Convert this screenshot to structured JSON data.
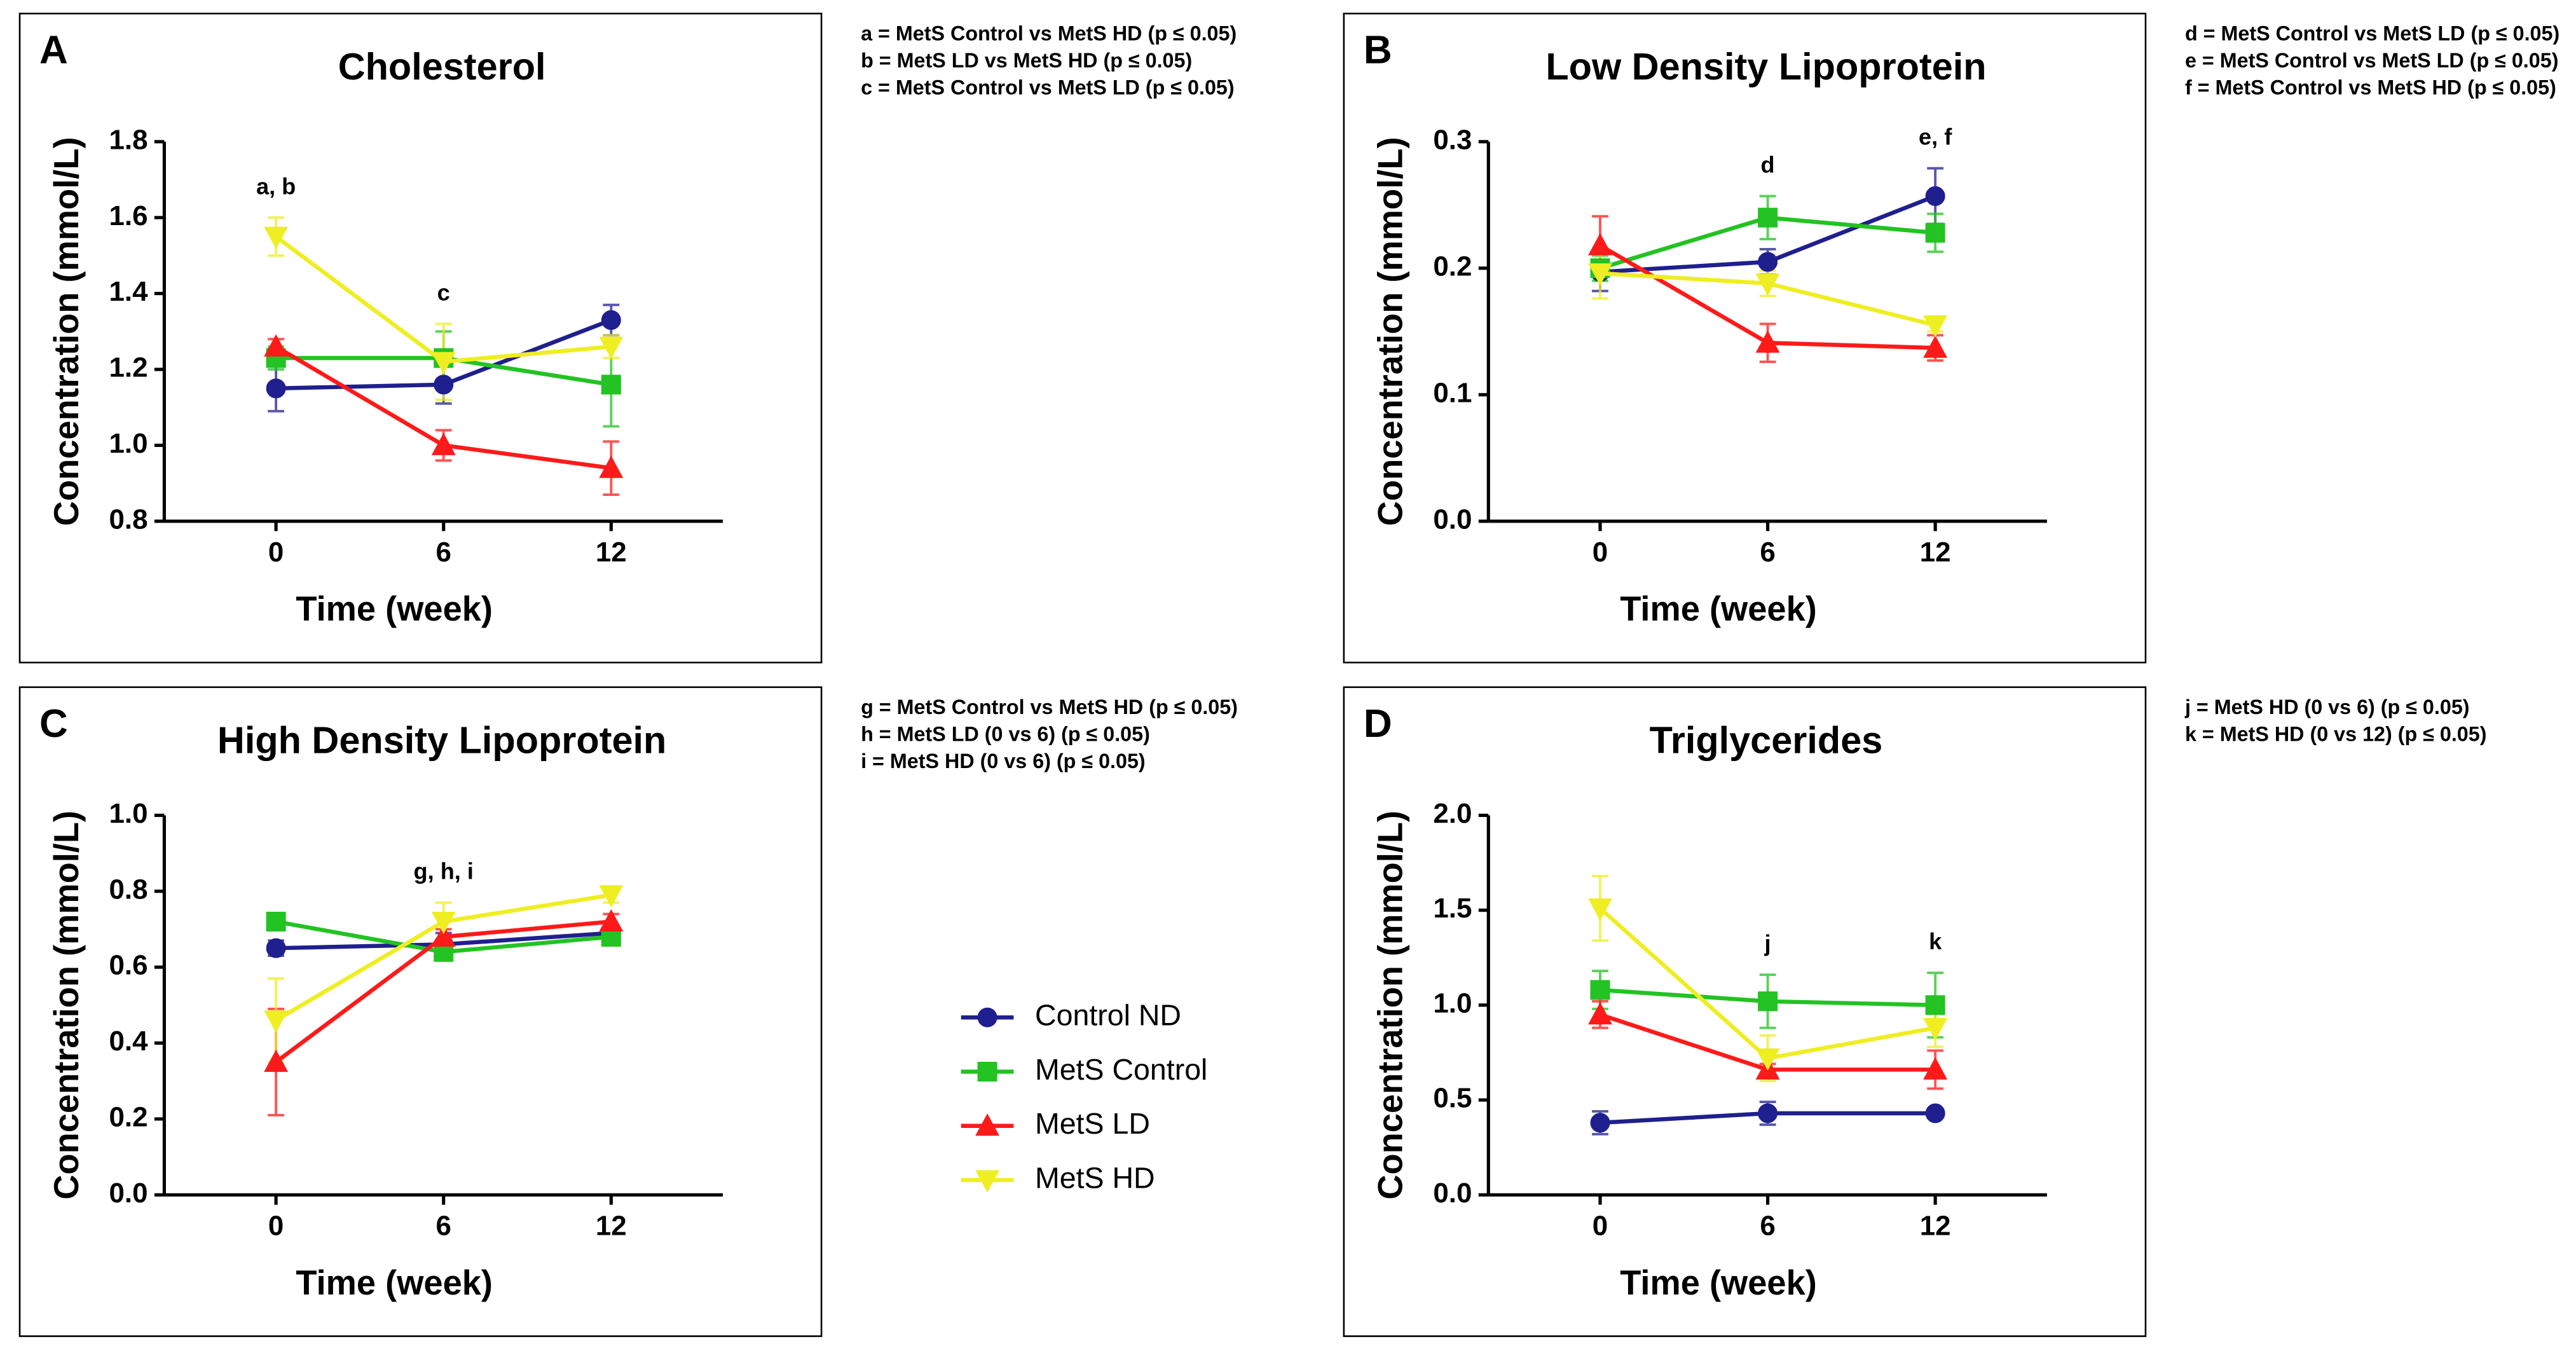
{
  "chart_data": [
    {
      "type": "line",
      "panel": "A",
      "title": "Cholesterol",
      "xlabel": "Time (week)",
      "ylabel": "Concentration (mmol/L)",
      "x": [
        0,
        6,
        12
      ],
      "xlim": [
        -4,
        16
      ],
      "xticks": [
        0,
        6,
        12
      ],
      "ylim": [
        0.8,
        1.8
      ],
      "yticks": [
        0.8,
        {
          "value": 1,
          "label": "1.0"
        },
        1.2,
        1.4,
        1.6,
        1.8
      ],
      "series": [
        {
          "name": "Control ND",
          "color": "#1f1f8f",
          "marker": "circle",
          "values": [
            1.15,
            1.16,
            1.33
          ],
          "errors": [
            0.06,
            0.05,
            0.04
          ]
        },
        {
          "name": "MetS Control",
          "color": "#22c322",
          "marker": "square",
          "values": [
            1.23,
            1.23,
            1.16
          ],
          "errors": [
            0.03,
            0.07,
            0.11
          ]
        },
        {
          "name": "MetS LD",
          "color": "#ff1a1a",
          "marker": "triangle",
          "values": [
            1.26,
            1.0,
            0.94
          ],
          "errors": [
            0.02,
            0.04,
            0.07
          ]
        },
        {
          "name": "MetS HD",
          "color": "#eeee22",
          "marker": "triangle-down",
          "values": [
            1.55,
            1.22,
            1.26
          ],
          "errors": [
            0.05,
            0.1,
            0.03
          ]
        }
      ],
      "annotations": [
        {
          "text": "a, b",
          "x": 0
        },
        {
          "text": "c",
          "x": 6
        }
      ],
      "notes": [
        "a = MetS Control vs MetS HD (p ≤ 0.05)",
        "b = MetS LD vs MetS HD  (p ≤ 0.05)",
        "c = MetS Control vs MetS LD (p ≤ 0.05)"
      ]
    },
    {
      "type": "line",
      "panel": "B",
      "title": "Low Density Lipoprotein",
      "xlabel": "Time (week)",
      "ylabel": "Concentration (mmol/L)",
      "x": [
        0,
        6,
        12
      ],
      "xlim": [
        -4,
        16
      ],
      "xticks": [
        0,
        6,
        12
      ],
      "ylim": [
        0,
        0.3
      ],
      "yticks": [
        {
          "value": 0,
          "label": "0.0"
        },
        0.1,
        0.2,
        0.3
      ],
      "series": [
        {
          "name": "Control ND",
          "color": "#1f1f8f",
          "marker": "circle",
          "values": [
            0.197,
            0.205,
            0.257
          ],
          "errors": [
            0.015,
            0.01,
            0.022
          ]
        },
        {
          "name": "MetS Control",
          "color": "#22c322",
          "marker": "square",
          "values": [
            0.2,
            0.24,
            0.228
          ],
          "errors": [
            0.01,
            0.017,
            0.015
          ]
        },
        {
          "name": "MetS LD",
          "color": "#ff1a1a",
          "marker": "triangle",
          "values": [
            0.218,
            0.141,
            0.137
          ],
          "errors": [
            0.023,
            0.015,
            0.01
          ]
        },
        {
          "name": "MetS HD",
          "color": "#eeee22",
          "marker": "triangle-down",
          "values": [
            0.196,
            0.188,
            0.155
          ],
          "errors": [
            0.02,
            0.01,
            0.005
          ]
        }
      ],
      "annotations": [
        {
          "text": "d",
          "x": 6
        },
        {
          "text": "e, f",
          "x": 12
        }
      ],
      "notes": [
        "d = MetS Control vs MetS LD (p ≤ 0.05)",
        "e = MetS Control vs MetS LD  (p ≤ 0.05)",
        "f = MetS Control vs MetS HD (p ≤ 0.05)"
      ]
    },
    {
      "type": "line",
      "panel": "C",
      "title": "High Density Lipoprotein",
      "xlabel": "Time (week)",
      "ylabel": "Concentration (mmol/L)",
      "x": [
        0,
        6,
        12
      ],
      "xlim": [
        -4,
        16
      ],
      "xticks": [
        0,
        6,
        12
      ],
      "ylim": [
        0,
        1
      ],
      "yticks": [
        {
          "value": 0,
          "label": "0.0"
        },
        0.2,
        0.4,
        0.6,
        0.8,
        {
          "value": 1,
          "label": "1.0"
        }
      ],
      "series": [
        {
          "name": "Control ND",
          "color": "#1f1f8f",
          "marker": "circle",
          "values": [
            0.65,
            0.66,
            0.69
          ],
          "errors": [
            0.02,
            0.03,
            0.02
          ]
        },
        {
          "name": "MetS Control",
          "color": "#22c322",
          "marker": "square",
          "values": [
            0.72,
            0.64,
            0.68
          ],
          "errors": [
            0.02,
            0.02,
            0.02
          ]
        },
        {
          "name": "MetS LD",
          "color": "#ff1a1a",
          "marker": "triangle",
          "values": [
            0.35,
            0.68,
            0.72
          ],
          "errors": [
            0.14,
            0.02,
            0.02
          ]
        },
        {
          "name": "MetS HD",
          "color": "#eeee22",
          "marker": "triangle-down",
          "values": [
            0.46,
            0.72,
            0.79
          ],
          "errors": [
            0.11,
            0.05,
            0.02
          ]
        }
      ],
      "annotations": [
        {
          "text": "g, h, i",
          "x": 6
        }
      ],
      "notes": [
        "g = MetS Control vs MetS HD (p ≤ 0.05)",
        "h = MetS LD (0 vs 6)  (p ≤ 0.05)",
        "i =  MetS HD (0 vs 6) (p ≤ 0.05)"
      ]
    },
    {
      "type": "line",
      "panel": "D",
      "title": "Triglycerides",
      "xlabel": "Time (week)",
      "ylabel": "Concentration (mmol/L)",
      "x": [
        0,
        6,
        12
      ],
      "xlim": [
        -4,
        16
      ],
      "xticks": [
        0,
        6,
        12
      ],
      "ylim": [
        0,
        2
      ],
      "yticks": [
        {
          "value": 0,
          "label": "0.0"
        },
        0.5,
        {
          "value": 1,
          "label": "1.0"
        },
        1.5,
        {
          "value": 2,
          "label": "2.0"
        }
      ],
      "series": [
        {
          "name": "Control ND",
          "color": "#1f1f8f",
          "marker": "circle",
          "values": [
            0.38,
            0.43,
            0.43
          ],
          "errors": [
            0.06,
            0.06,
            0.02
          ]
        },
        {
          "name": "MetS Control",
          "color": "#22c322",
          "marker": "square",
          "values": [
            1.08,
            1.02,
            1.0
          ],
          "errors": [
            0.1,
            0.14,
            0.17
          ]
        },
        {
          "name": "MetS LD",
          "color": "#ff1a1a",
          "marker": "triangle",
          "values": [
            0.95,
            0.66,
            0.66
          ],
          "errors": [
            0.07,
            0.03,
            0.1
          ]
        },
        {
          "name": "MetS HD",
          "color": "#eeee22",
          "marker": "triangle-down",
          "values": [
            1.51,
            0.72,
            0.88
          ],
          "errors": [
            0.17,
            0.12,
            0.1
          ]
        }
      ],
      "annotations": [
        {
          "text": "j",
          "x": 6
        },
        {
          "text": "k",
          "x": 12
        }
      ],
      "notes": [
        "j = MetS HD (0 vs 6)  (p ≤ 0.05)",
        "k = MetS HD (0 vs 12) (p ≤ 0.05)"
      ]
    }
  ]
}
